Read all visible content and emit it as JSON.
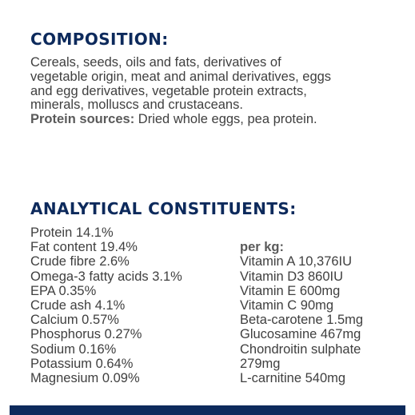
{
  "composition": {
    "heading": "COMPOSITION:",
    "lines": [
      "Cereals, seeds, oils and fats, derivatives of",
      "vegetable origin, meat and animal derivatives, eggs",
      "and egg derivatives, vegetable protein extracts,",
      "minerals, molluscs and crustaceans."
    ],
    "protein_sources_label": "Protein sources:",
    "protein_sources_value": " Dried whole eggs, pea protein."
  },
  "analytical": {
    "heading": "ANALYTICAL CONSTITUENTS:",
    "left": [
      "Protein 14.1%",
      "Fat content 19.4%",
      "Crude fibre 2.6%",
      "Omega-3 fatty acids 3.1%",
      "EPA 0.35%",
      "Crude ash 4.1%",
      "Calcium 0.57%",
      "Phosphorus 0.27%",
      "Sodium 0.16%",
      "Potassium 0.64%",
      "Magnesium 0.09%"
    ],
    "per_kg_label": "per kg:",
    "right": [
      "Vitamin A 10,376IU",
      "Vitamin D3 860IU",
      "Vitamin E 600mg",
      "Vitamin C 90mg",
      "Beta-carotene 1.5mg",
      "Glucosamine 467mg",
      "Chondroitin sulphate",
      "279mg",
      "L-carnitine 540mg"
    ]
  },
  "colors": {
    "heading": "#0d2a5c",
    "text": "#3f3f3f",
    "footer_bar": "#0d2a5c"
  }
}
